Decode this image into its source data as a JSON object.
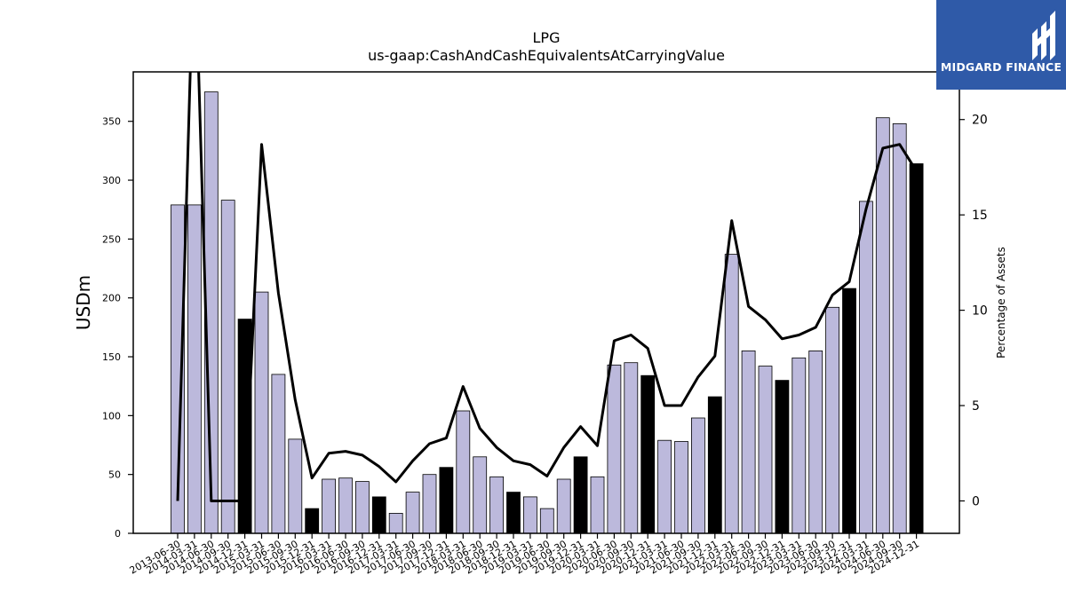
{
  "brand": {
    "logo_text": "MIDGARD FINANCE",
    "color": "#2f5aa8"
  },
  "chart_data": {
    "type": "bar",
    "title": "LPG",
    "subtitle": "us-gaap:CashAndCashEquivalentsAtCarryingValue",
    "ylabel": "USDm",
    "y2label": "Percentage of Assets",
    "ylim": [
      0,
      392
    ],
    "y2lim": [
      -1.7,
      22.5
    ],
    "yticks": [
      0,
      50,
      100,
      150,
      200,
      250,
      300,
      350
    ],
    "y2ticks": [
      0,
      5,
      10,
      15,
      20
    ],
    "bar_fill": "#bcb9dc",
    "fy_bar_fill": "#000000",
    "line_color": "#000000",
    "categories": [
      "2013-06-30",
      "2014-03-31",
      "2014-06-30",
      "2014-09-30",
      "2014-12-31",
      "2015-03-31",
      "2015-06-30",
      "2015-09-30",
      "2015-12-31",
      "2016-03-31",
      "2016-06-30",
      "2016-09-30",
      "2016-12-31",
      "2017-03-31",
      "2017-06-30",
      "2017-09-30",
      "2017-12-31",
      "2018-03-31",
      "2018-06-30",
      "2018-09-30",
      "2018-12-31",
      "2019-03-31",
      "2019-06-30",
      "2019-09-30",
      "2019-12-31",
      "2020-03-31",
      "2020-06-30",
      "2020-09-30",
      "2020-12-31",
      "2021-03-31",
      "2021-06-30",
      "2021-09-30",
      "2021-12-31",
      "2022-03-31",
      "2022-06-30",
      "2022-09-30",
      "2022-12-31",
      "2023-03-31",
      "2023-06-30",
      "2023-09-30",
      "2023-12-31",
      "2024-03-31",
      "2024-06-30",
      "2024-09-30",
      "2024-12-31"
    ],
    "series": [
      {
        "type": "bar",
        "axis": "left",
        "values": [
          279,
          279,
          375,
          283,
          182,
          205,
          135,
          80,
          21,
          46,
          47,
          44,
          31,
          17,
          35,
          50,
          56,
          104,
          65,
          48,
          35,
          31,
          21,
          46,
          65,
          48,
          143,
          145,
          134,
          79,
          78,
          98,
          116,
          237,
          155,
          142,
          130,
          149,
          155,
          192,
          208,
          282,
          353,
          348,
          314
        ],
        "fiscal_year_end": [
          false,
          false,
          false,
          false,
          true,
          false,
          false,
          false,
          true,
          false,
          false,
          false,
          true,
          false,
          false,
          false,
          true,
          false,
          false,
          false,
          true,
          false,
          false,
          false,
          true,
          false,
          false,
          false,
          true,
          false,
          false,
          false,
          true,
          false,
          false,
          false,
          true,
          false,
          false,
          false,
          true,
          false,
          false,
          false,
          true
        ]
      },
      {
        "type": "line",
        "axis": "right",
        "values": [
          0,
          30,
          0,
          0,
          0,
          18.7,
          10.9,
          5.3,
          1.2,
          2.5,
          2.6,
          2.4,
          1.8,
          1.0,
          2.1,
          3.0,
          3.3,
          6.0,
          3.8,
          2.8,
          2.1,
          1.9,
          1.3,
          2.8,
          3.9,
          2.9,
          8.4,
          8.7,
          8.0,
          5.0,
          5.0,
          6.5,
          7.6,
          14.7,
          10.2,
          9.5,
          8.5,
          8.7,
          9.1,
          10.8,
          11.5,
          15.3,
          18.5,
          18.7,
          17.3
        ]
      }
    ]
  }
}
